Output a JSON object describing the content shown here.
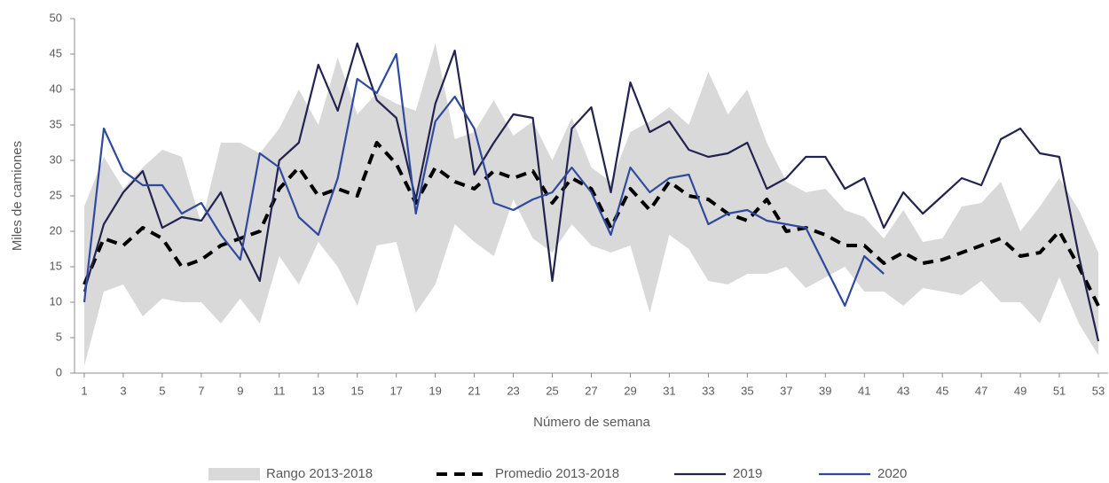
{
  "chart_data": {
    "type": "line",
    "y_label": "Miles de camiones",
    "x_label": "Número de semana",
    "x": [
      1,
      2,
      3,
      4,
      5,
      6,
      7,
      8,
      9,
      10,
      11,
      12,
      13,
      14,
      15,
      16,
      17,
      18,
      19,
      20,
      21,
      22,
      23,
      24,
      25,
      26,
      27,
      28,
      29,
      30,
      31,
      32,
      33,
      34,
      35,
      36,
      37,
      38,
      39,
      40,
      41,
      42,
      43,
      44,
      45,
      46,
      47,
      48,
      49,
      50,
      51,
      52,
      53
    ],
    "xlim": [
      0.5,
      53.5
    ],
    "xticks": [
      1,
      3,
      5,
      7,
      9,
      11,
      13,
      15,
      17,
      19,
      21,
      23,
      25,
      27,
      29,
      31,
      33,
      35,
      37,
      39,
      41,
      43,
      45,
      47,
      49,
      51,
      53
    ],
    "ylim": [
      0,
      50
    ],
    "yticks": [
      0,
      5,
      10,
      15,
      20,
      25,
      30,
      35,
      40,
      45,
      50
    ],
    "grid": false,
    "legend": "bottom",
    "band": {
      "name": "Rango 2013-2018",
      "color": "#d9d9d9",
      "high": [
        23.5,
        30.5,
        26,
        29,
        31.5,
        30.5,
        21,
        32.5,
        32.5,
        31,
        34.5,
        40,
        35,
        44.5,
        36.5,
        39.5,
        38,
        37,
        46.5,
        33,
        34,
        38.5,
        33.5,
        35.5,
        30,
        36,
        29,
        27,
        34,
        35.5,
        37.5,
        35,
        42.5,
        36.5,
        40,
        32.5,
        27,
        25.5,
        26,
        23,
        22,
        19,
        23,
        18.5,
        19,
        23.5,
        24,
        27,
        20,
        23.5,
        27.5,
        23,
        17
      ],
      "low": [
        1,
        11.5,
        12.5,
        8,
        10.5,
        10,
        10,
        7,
        10.5,
        7,
        16.5,
        12.5,
        18.5,
        15,
        9.5,
        18,
        18.5,
        8.5,
        12.5,
        21,
        18.5,
        16.5,
        24.5,
        19,
        17,
        21,
        18,
        17,
        18,
        8.5,
        19.5,
        17.5,
        13,
        12.5,
        14,
        14,
        15,
        12,
        13.5,
        15,
        11.5,
        11.5,
        9.5,
        12,
        11.5,
        11,
        13,
        10,
        10,
        7,
        13.5,
        7,
        2.5
      ]
    },
    "series": [
      {
        "name": "Promedio 2013-2018",
        "color": "#000000",
        "dashed": true,
        "width": 4,
        "values": [
          12.5,
          19,
          18,
          20.5,
          19,
          15,
          16,
          18,
          19,
          20,
          26,
          29,
          25,
          26,
          25,
          32.5,
          29.5,
          24,
          29,
          27,
          26,
          28.5,
          27.5,
          28.5,
          24,
          27.5,
          26,
          20.5,
          26,
          23,
          27,
          25,
          24.5,
          22.5,
          21.5,
          24.5,
          20,
          20.5,
          19.5,
          18,
          18,
          15.5,
          17,
          15.5,
          16,
          17,
          18,
          19,
          16.5,
          17,
          20,
          15,
          9.5
        ]
      },
      {
        "name": "2019",
        "color": "#23234f",
        "dashed": false,
        "width": 2.2,
        "values": [
          11.5,
          21,
          25.5,
          28.5,
          20.5,
          22,
          21.5,
          25.5,
          18.5,
          13,
          30,
          32.5,
          43.5,
          37,
          46.5,
          38.5,
          36,
          24.5,
          38,
          45.5,
          28,
          32.5,
          36.5,
          36,
          13,
          34.5,
          37.5,
          25.5,
          41,
          34,
          35.5,
          31.5,
          30.5,
          31,
          32.5,
          26,
          27.5,
          30.5,
          30.5,
          26,
          27.5,
          20.5,
          25.5,
          22.5,
          25,
          27.5,
          26.5,
          33,
          34.5,
          31,
          30.5,
          16.5,
          4.5
        ]
      },
      {
        "name": "2020",
        "color": "#2f4a9c",
        "dashed": false,
        "width": 2.2,
        "values": [
          10,
          34.5,
          28.5,
          26.5,
          26.5,
          22.5,
          24,
          19.5,
          16,
          31,
          29,
          22,
          19.5,
          27.5,
          41.5,
          39.5,
          45,
          22.5,
          35.5,
          39,
          34.5,
          24,
          23,
          24.5,
          25.5,
          29,
          25.5,
          19.5,
          29,
          25.5,
          27.5,
          28,
          21,
          22.5,
          23,
          21.5,
          21,
          20.5,
          15,
          9.5,
          16.5,
          14,
          null,
          null,
          null,
          null,
          null,
          null,
          null,
          null,
          null,
          null,
          null
        ]
      }
    ]
  }
}
